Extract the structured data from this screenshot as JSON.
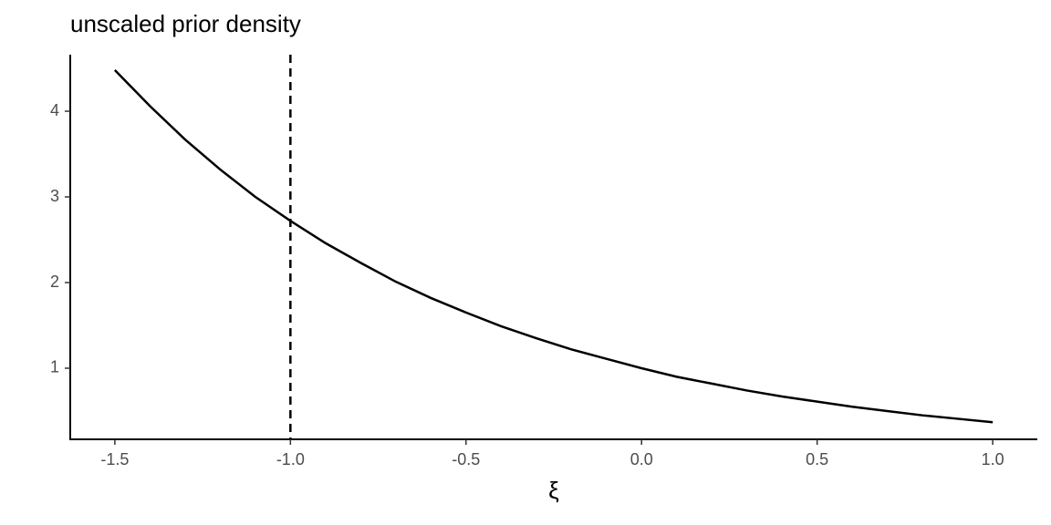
{
  "chart_data": {
    "type": "line",
    "title": "unscaled prior density",
    "x_label": "ξ",
    "x": [
      -1.5,
      -1.4,
      -1.3,
      -1.2,
      -1.1,
      -1.0,
      -0.9,
      -0.8,
      -0.7,
      -0.6,
      -0.5,
      -0.4,
      -0.3,
      -0.2,
      -0.1,
      0.0,
      0.1,
      0.2,
      0.3,
      0.4,
      0.5,
      0.6,
      0.7,
      0.8,
      0.9,
      1.0
    ],
    "series": [
      {
        "color": "#000000",
        "values": [
          4.48,
          4.06,
          3.67,
          3.32,
          3.0,
          2.72,
          2.46,
          2.23,
          2.01,
          1.82,
          1.65,
          1.49,
          1.35,
          1.22,
          1.11,
          1.0,
          0.9,
          0.82,
          0.74,
          0.67,
          0.61,
          0.55,
          0.5,
          0.45,
          0.41,
          0.37
        ]
      }
    ],
    "vline": -1.0,
    "xlim": [
      -1.627,
      1.127
    ],
    "xticks": [
      -1.5,
      {
        "value": -1.0,
        "label": "-1.0"
      },
      -0.5,
      {
        "value": 0.0,
        "label": "0.0"
      },
      0.5,
      {
        "value": 1.0,
        "label": "1.0"
      }
    ],
    "ylim": [
      0.17,
      4.66
    ],
    "yticks": [
      1,
      2,
      3,
      4
    ],
    "grid": false
  }
}
